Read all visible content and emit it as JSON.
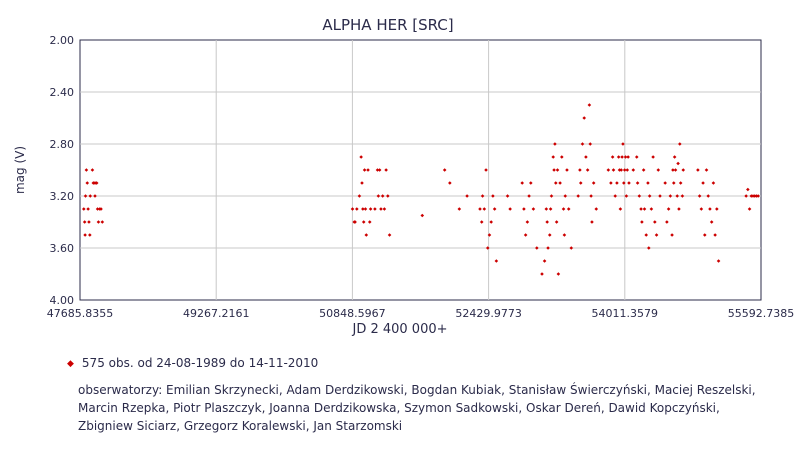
{
  "chart_data": {
    "type": "scatter",
    "title": "ALPHA HER [SRC]",
    "xlabel": "JD 2 400 000+",
    "ylabel": "mag (V)",
    "xlim": [
      47685.8355,
      55592.7385
    ],
    "ylim": [
      2.0,
      4.0
    ],
    "y_inverted": true,
    "grid": true,
    "x_ticks": [
      "47685.8355",
      "49267.2161",
      "50848.5967",
      "52429.9773",
      "54011.3579",
      "55592.7385"
    ],
    "y_ticks": [
      "2.00",
      "2.40",
      "2.80",
      "3.20",
      "3.60",
      "4.00"
    ],
    "marker_color": "#cc0000",
    "series": [
      {
        "points": [
          [
            47730,
            3.3
          ],
          [
            47740,
            3.4
          ],
          [
            47745,
            3.5
          ],
          [
            47750,
            3.2
          ],
          [
            47760,
            3.0
          ],
          [
            47770,
            3.1
          ],
          [
            47780,
            3.3
          ],
          [
            47790,
            3.4
          ],
          [
            47800,
            3.5
          ],
          [
            47805,
            3.2
          ],
          [
            47830,
            3.0
          ],
          [
            47840,
            3.1
          ],
          [
            47850,
            3.1
          ],
          [
            47860,
            3.2
          ],
          [
            47870,
            3.1
          ],
          [
            47880,
            3.1
          ],
          [
            47890,
            3.3
          ],
          [
            47900,
            3.4
          ],
          [
            47915,
            3.3
          ],
          [
            47930,
            3.3
          ],
          [
            47945,
            3.4
          ],
          [
            50850,
            3.3
          ],
          [
            50870,
            3.4
          ],
          [
            50880,
            3.4
          ],
          [
            50900,
            3.3
          ],
          [
            50930,
            3.2
          ],
          [
            50950,
            2.9
          ],
          [
            50960,
            3.1
          ],
          [
            50970,
            3.3
          ],
          [
            50980,
            3.4
          ],
          [
            50990,
            3.0
          ],
          [
            51000,
            3.3
          ],
          [
            51010,
            3.5
          ],
          [
            51030,
            3.0
          ],
          [
            51050,
            3.4
          ],
          [
            51060,
            3.3
          ],
          [
            51110,
            3.3
          ],
          [
            51140,
            3.0
          ],
          [
            51150,
            3.2
          ],
          [
            51165,
            3.0
          ],
          [
            51180,
            3.3
          ],
          [
            51200,
            3.2
          ],
          [
            51220,
            3.3
          ],
          [
            51240,
            3.0
          ],
          [
            51260,
            3.2
          ],
          [
            51280,
            3.5
          ],
          [
            51660,
            3.35
          ],
          [
            51920,
            3.0
          ],
          [
            51980,
            3.1
          ],
          [
            52090,
            3.3
          ],
          [
            52180,
            3.2
          ],
          [
            52330,
            3.3
          ],
          [
            52350,
            3.4
          ],
          [
            52360,
            3.2
          ],
          [
            52380,
            3.3
          ],
          [
            52400,
            3.0
          ],
          [
            52420,
            3.6
          ],
          [
            52440,
            3.5
          ],
          [
            52460,
            3.4
          ],
          [
            52480,
            3.2
          ],
          [
            52500,
            3.3
          ],
          [
            52520,
            3.7
          ],
          [
            52650,
            3.2
          ],
          [
            52680,
            3.3
          ],
          [
            52820,
            3.1
          ],
          [
            52840,
            3.3
          ],
          [
            52860,
            3.5
          ],
          [
            52880,
            3.4
          ],
          [
            52900,
            3.2
          ],
          [
            52920,
            3.1
          ],
          [
            52950,
            3.3
          ],
          [
            52990,
            3.6
          ],
          [
            53050,
            3.8
          ],
          [
            53080,
            3.7
          ],
          [
            53100,
            3.3
          ],
          [
            53110,
            3.4
          ],
          [
            53120,
            3.6
          ],
          [
            53140,
            3.5
          ],
          [
            53150,
            3.3
          ],
          [
            53160,
            3.2
          ],
          [
            53180,
            2.9
          ],
          [
            53190,
            3.0
          ],
          [
            53200,
            2.8
          ],
          [
            53210,
            3.1
          ],
          [
            53220,
            3.4
          ],
          [
            53230,
            3.0
          ],
          [
            53240,
            3.8
          ],
          [
            53260,
            3.1
          ],
          [
            53280,
            2.9
          ],
          [
            53300,
            3.3
          ],
          [
            53310,
            3.5
          ],
          [
            53320,
            3.2
          ],
          [
            53340,
            3.0
          ],
          [
            53360,
            3.3
          ],
          [
            53390,
            3.6
          ],
          [
            53470,
            3.2
          ],
          [
            53490,
            3.0
          ],
          [
            53500,
            3.1
          ],
          [
            53520,
            2.8
          ],
          [
            53540,
            2.6
          ],
          [
            53560,
            2.9
          ],
          [
            53580,
            3.0
          ],
          [
            53600,
            2.5
          ],
          [
            53610,
            2.8
          ],
          [
            53620,
            3.2
          ],
          [
            53630,
            3.4
          ],
          [
            53650,
            3.1
          ],
          [
            53680,
            3.3
          ],
          [
            53820,
            3.0
          ],
          [
            53850,
            3.1
          ],
          [
            53870,
            2.9
          ],
          [
            53880,
            3.0
          ],
          [
            53900,
            3.2
          ],
          [
            53920,
            3.1
          ],
          [
            53940,
            2.9
          ],
          [
            53950,
            3.0
          ],
          [
            53960,
            3.3
          ],
          [
            53970,
            3.0
          ],
          [
            53980,
            2.9
          ],
          [
            53990,
            2.8
          ],
          [
            54000,
            3.1
          ],
          [
            54010,
            3.0
          ],
          [
            54020,
            2.9
          ],
          [
            54030,
            3.2
          ],
          [
            54040,
            3.0
          ],
          [
            54050,
            2.9
          ],
          [
            54060,
            3.1
          ],
          [
            54110,
            3.0
          ],
          [
            54150,
            2.9
          ],
          [
            54160,
            3.1
          ],
          [
            54180,
            3.2
          ],
          [
            54200,
            3.3
          ],
          [
            54210,
            3.4
          ],
          [
            54230,
            3.0
          ],
          [
            54240,
            3.3
          ],
          [
            54260,
            3.5
          ],
          [
            54280,
            3.1
          ],
          [
            54290,
            3.6
          ],
          [
            54300,
            3.2
          ],
          [
            54320,
            3.3
          ],
          [
            54340,
            2.9
          ],
          [
            54360,
            3.4
          ],
          [
            54380,
            3.5
          ],
          [
            54400,
            3.0
          ],
          [
            54420,
            3.2
          ],
          [
            54480,
            3.1
          ],
          [
            54500,
            3.4
          ],
          [
            54520,
            3.3
          ],
          [
            54540,
            3.2
          ],
          [
            54560,
            3.5
          ],
          [
            54570,
            3.0
          ],
          [
            54580,
            3.1
          ],
          [
            54590,
            2.9
          ],
          [
            54600,
            3.0
          ],
          [
            54620,
            3.2
          ],
          [
            54630,
            2.95
          ],
          [
            54640,
            3.3
          ],
          [
            54650,
            2.8
          ],
          [
            54660,
            3.1
          ],
          [
            54680,
            3.2
          ],
          [
            54690,
            3.0
          ],
          [
            54860,
            3.0
          ],
          [
            54880,
            3.2
          ],
          [
            54900,
            3.3
          ],
          [
            54920,
            3.1
          ],
          [
            54940,
            3.5
          ],
          [
            54960,
            3.0
          ],
          [
            54980,
            3.2
          ],
          [
            55000,
            3.3
          ],
          [
            55020,
            3.4
          ],
          [
            55040,
            3.1
          ],
          [
            55060,
            3.5
          ],
          [
            55080,
            3.3
          ],
          [
            55100,
            3.7
          ],
          [
            55420,
            3.2
          ],
          [
            55440,
            3.15
          ],
          [
            55460,
            3.3
          ],
          [
            55480,
            3.2
          ],
          [
            55500,
            3.2
          ],
          [
            55520,
            3.2
          ],
          [
            55540,
            3.2
          ],
          [
            55560,
            3.2
          ]
        ]
      }
    ]
  },
  "legend": {
    "text": "575 obs. od 24-08-1989 do 14-11-2010"
  },
  "observers": {
    "text": "obserwatorzy: Emilian Skrzynecki, Adam Derdzikowski, Bogdan Kubiak, Stanisław Świerczyński, Maciej Reszelski, Marcin Rzepka, Piotr Plaszczyk, Joanna Derdzikowska, Szymon Sadkowski, Oskar Dereń, Dawid Kopczyński, Zbigniew Siciarz, Grzegorz Koralewski, Jan Starzomski"
  }
}
